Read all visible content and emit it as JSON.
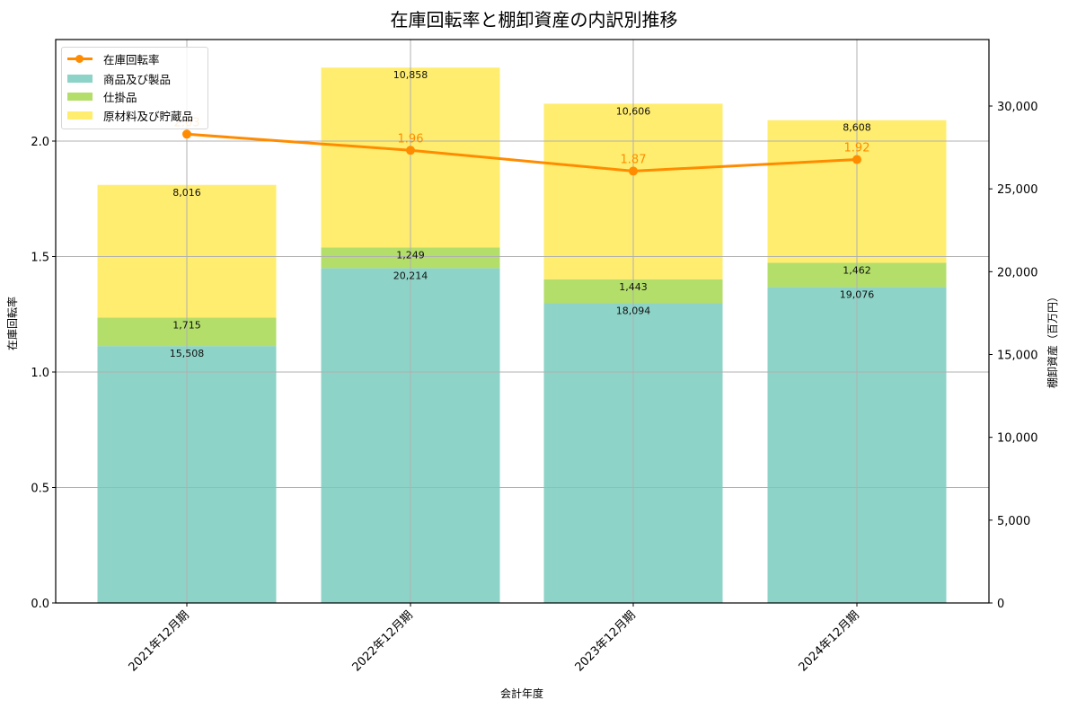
{
  "title": "在庫回転率と棚卸資産の内訳別推移",
  "legend": {
    "items": [
      {
        "label": "在庫回転率",
        "kind": "line",
        "color": "#ff8c00"
      },
      {
        "label": "商品及び製品",
        "kind": "bar",
        "color": "#8dd3c7"
      },
      {
        "label": "仕掛品",
        "kind": "bar",
        "color": "#b3de69"
      },
      {
        "label": "原材料及び貯蔵品",
        "kind": "bar",
        "color": "#ffed6f"
      }
    ]
  },
  "axes": {
    "xlabel": "会計年度",
    "ylabel_left": "在庫回転率",
    "ylabel_right": "棚卸資産（百万円）",
    "left_ticks": [
      "0.0",
      "0.5",
      "1.0",
      "1.5",
      "2.0"
    ],
    "right_ticks": [
      "0",
      "5,000",
      "10,000",
      "15,000",
      "20,000",
      "25,000",
      "30,000"
    ]
  },
  "chart_data": {
    "type": "bar",
    "title": "在庫回転率と棚卸資産の内訳別推移",
    "xlabel": "会計年度",
    "ylabel": "在庫回転率",
    "ylabel_secondary": "棚卸資産（百万円）",
    "categories": [
      "2021年12月期",
      "2022年12月期",
      "2023年12月期",
      "2024年12月期"
    ],
    "series": [
      {
        "name": "商品及び製品",
        "type": "stacked-bar",
        "axis": "right",
        "color": "#8dd3c7",
        "values": [
          15508,
          20214,
          18094,
          19076
        ],
        "labels": [
          "15,508",
          "20,214",
          "18,094",
          "19,076"
        ]
      },
      {
        "name": "仕掛品",
        "type": "stacked-bar",
        "axis": "right",
        "color": "#b3de69",
        "values": [
          1715,
          1249,
          1443,
          1462
        ],
        "labels": [
          "1,715",
          "1,249",
          "1,443",
          "1,462"
        ]
      },
      {
        "name": "原材料及び貯蔵品",
        "type": "stacked-bar",
        "axis": "right",
        "color": "#ffed6f",
        "values": [
          8016,
          10858,
          10606,
          8608
        ],
        "labels": [
          "8,016",
          "10,858",
          "10,606",
          "8,608"
        ]
      },
      {
        "name": "在庫回転率",
        "type": "line",
        "axis": "left",
        "color": "#ff8c00",
        "values": [
          2.03,
          1.96,
          1.87,
          1.92
        ],
        "labels": [
          "2.03",
          "1.96",
          "1.87",
          "1.92"
        ]
      }
    ],
    "ylim": [
      0,
      2.43
    ],
    "ylim_secondary": [
      0,
      34000
    ],
    "grid": true,
    "legend_position": "upper left"
  }
}
